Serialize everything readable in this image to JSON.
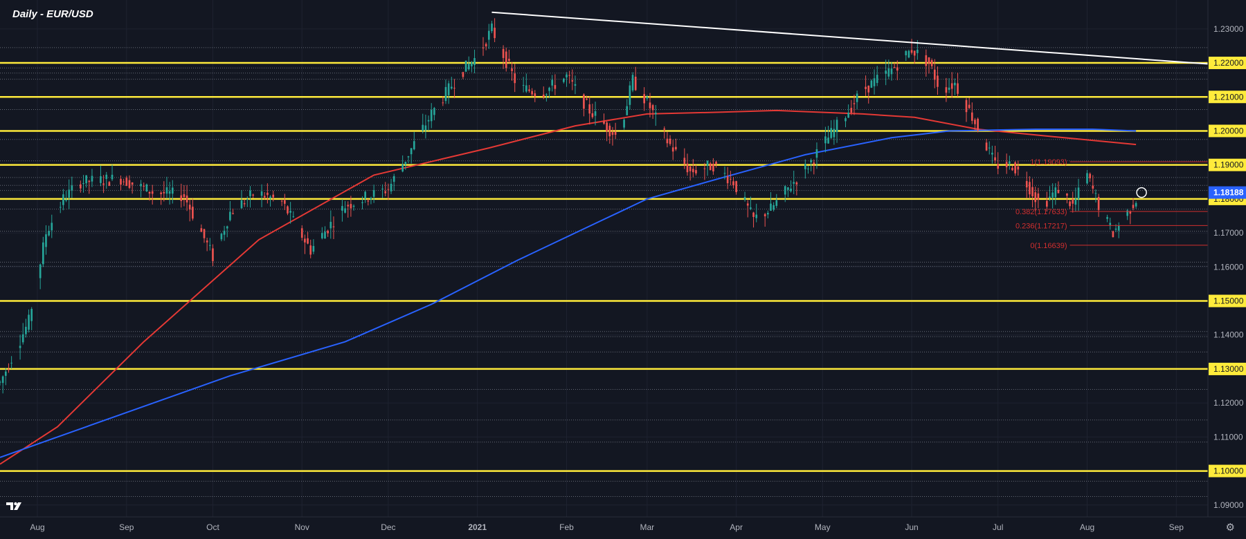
{
  "header": {
    "title": "Daily - EUR/USD"
  },
  "icons": {
    "logo": "tradingview-logo-icon",
    "settings": "gear-icon"
  },
  "colors": {
    "background": "#131722",
    "up_candle": "#26a69a",
    "down_candle": "#ef5350",
    "sma_fast": "#e53935",
    "sma_slow": "#2962ff",
    "key_levels": "#ffeb3b",
    "trendline": "#ffffff",
    "fib": "#d32f2f",
    "current_price_badge": "#2962ff"
  },
  "chart_data": {
    "type": "candlestick",
    "title": "Daily - EUR/USD",
    "symbol": "EUR/USD",
    "timeframe": "Daily",
    "y_axis": {
      "position": "right",
      "ylim": [
        1.0865,
        1.2385
      ],
      "tick_labels": [
        "1.23000",
        "1.22000",
        "1.21000",
        "1.20000",
        "1.19000",
        "1.18000",
        "1.17000",
        "1.16000",
        "1.15000",
        "1.14000",
        "1.13000",
        "1.12000",
        "1.11000",
        "1.10000",
        "1.09000"
      ]
    },
    "x_axis": {
      "months": [
        "Aug",
        "Sep",
        "Oct",
        "Nov",
        "Dec",
        "2021",
        "Feb",
        "Mar",
        "Apr",
        "May",
        "Jun",
        "Jul",
        "Aug",
        "Sep"
      ],
      "month_day_index": [
        13,
        44,
        74,
        105,
        135,
        166,
        197,
        225,
        256,
        286,
        317,
        347,
        378,
        409
      ],
      "visible_day_range": [
        0,
        420
      ]
    },
    "current_price": "1.18188",
    "horizontal_levels_labeled": [
      "1.22000",
      "1.21000",
      "1.20000",
      "1.19000",
      "1.18000",
      "1.15000",
      "1.13000",
      "1.10000"
    ],
    "minor_levels": [
      1.2245,
      1.2185,
      1.217,
      1.2152,
      1.2063,
      1.1975,
      1.1912,
      1.1863,
      1.184,
      1.1825,
      1.177,
      1.1705,
      1.1614,
      1.1602,
      1.141,
      1.1395,
      1.135,
      1.124,
      1.115,
      1.1085,
      1.097,
      1.0925
    ],
    "fibonacci": [
      {
        "label": "1(1.19093)",
        "value": 1.19093
      },
      {
        "label": "0.382(1.17633)",
        "value": 1.17633
      },
      {
        "label": "0.236(1.17217)",
        "value": 1.17217
      },
      {
        "label": "0(1.16639)",
        "value": 1.16639
      }
    ],
    "trendline": {
      "x": [
        171,
        420
      ],
      "y": [
        1.2349,
        1.2197
      ]
    },
    "series": [
      {
        "name": "",
        "role": "ma_fast",
        "x": [
          0,
          20,
          50,
          90,
          130,
          170,
          200,
          225,
          250,
          270,
          300,
          318,
          340,
          370,
          395
        ],
        "y": [
          1.102,
          1.113,
          1.138,
          1.168,
          1.187,
          1.195,
          1.2015,
          1.205,
          1.2055,
          1.206,
          1.205,
          1.204,
          1.2005,
          1.198,
          1.196
        ]
      },
      {
        "name": "",
        "role": "ma_slow",
        "x": [
          0,
          40,
          80,
          120,
          150,
          180,
          210,
          225,
          250,
          280,
          310,
          330,
          360,
          380,
          395
        ],
        "y": [
          1.104,
          1.116,
          1.128,
          1.138,
          1.149,
          1.162,
          1.174,
          1.18,
          1.186,
          1.193,
          1.198,
          1.2,
          1.2005,
          1.2005,
          1.2
        ]
      }
    ],
    "price_path": {
      "x": [
        0,
        10,
        16,
        22,
        28,
        42,
        53,
        64,
        74,
        80,
        89,
        98,
        108,
        120,
        135,
        150,
        160,
        166,
        171,
        180,
        188,
        197,
        205,
        215,
        220,
        226,
        232,
        240,
        248,
        255,
        262,
        268,
        275,
        282,
        288,
        295,
        300,
        310,
        317,
        323,
        327,
        332,
        340,
        346,
        352,
        356,
        362,
        368,
        373,
        378,
        383,
        387,
        392,
        395
      ],
      "y": [
        1.126,
        1.144,
        1.17,
        1.18,
        1.185,
        1.186,
        1.182,
        1.181,
        1.163,
        1.176,
        1.182,
        1.179,
        1.165,
        1.178,
        1.183,
        1.205,
        1.217,
        1.222,
        1.23,
        1.213,
        1.211,
        1.216,
        1.206,
        1.198,
        1.215,
        1.207,
        1.197,
        1.188,
        1.19,
        1.185,
        1.174,
        1.177,
        1.184,
        1.191,
        1.198,
        1.206,
        1.212,
        1.218,
        1.224,
        1.22,
        1.212,
        1.214,
        1.201,
        1.19,
        1.19,
        1.186,
        1.178,
        1.183,
        1.178,
        1.187,
        1.176,
        1.17,
        1.176,
        1.18
      ]
    }
  }
}
